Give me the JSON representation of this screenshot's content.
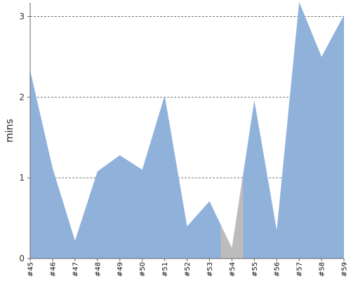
{
  "chart_data": {
    "type": "area",
    "title": "",
    "xlabel": "",
    "ylabel": "mins",
    "categories": [
      "#45",
      "#46",
      "#47",
      "#48",
      "#49",
      "#50",
      "#51",
      "#52",
      "#53",
      "#54",
      "#55",
      "#56",
      "#57",
      "#58",
      "#59"
    ],
    "yticks": [
      0,
      1,
      2,
      3
    ],
    "ylim": [
      0,
      3.18
    ],
    "grid": true,
    "legend": "none",
    "colors": {
      "area": "#8fb1da",
      "highlight": "#bcbcbc",
      "grid": "#777777",
      "axis": "#666666"
    },
    "series": [
      {
        "values": [
          2.33,
          1.12,
          0.22,
          1.08,
          1.28,
          1.1,
          2.02,
          0.4,
          0.71,
          0.13,
          1.96,
          0.35,
          3.18,
          2.5,
          3.02
        ]
      }
    ],
    "highlight_range": [
      "#54"
    ]
  }
}
